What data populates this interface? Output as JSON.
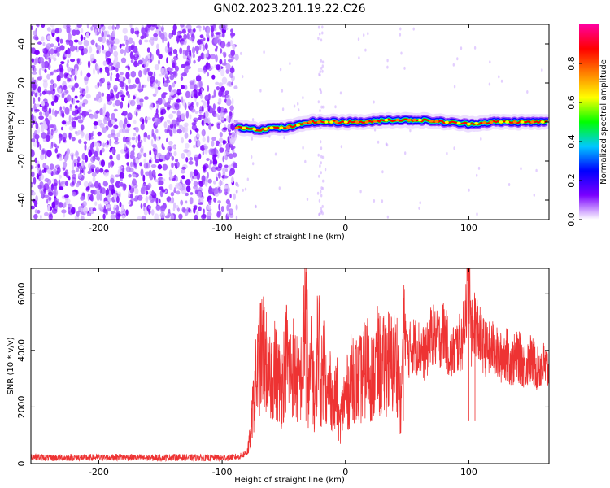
{
  "figure": {
    "title": "GN02.2023.201.19.22.C26"
  },
  "chart_data": [
    {
      "type": "heatmap",
      "title": "",
      "xlabel": "Height of straight line (km)",
      "ylabel": "Frequency (Hz)",
      "xlim": [
        -255,
        165
      ],
      "ylim": [
        -50,
        50
      ],
      "xticks": [
        -200,
        -100,
        0,
        100
      ],
      "yticks": [
        -40,
        -20,
        0,
        20,
        40
      ],
      "noise_region_x": [
        -255,
        -88
      ],
      "signal_frequency_track": {
        "x": [
          -88,
          -80,
          -70,
          -60,
          -50,
          -40,
          -30,
          -20,
          -10,
          0,
          10,
          20,
          30,
          40,
          60,
          80,
          100,
          120,
          140,
          165
        ],
        "y": [
          -3,
          -3,
          -4,
          -3,
          -3,
          -2,
          0,
          0,
          0,
          0,
          0,
          0,
          1,
          1,
          1,
          0,
          -1,
          0,
          0,
          0
        ]
      },
      "colorbar": {
        "label": "Normalized spectral amplitude",
        "range": [
          0.0,
          1.0
        ],
        "ticks": [
          0.0,
          0.2,
          0.4,
          0.6,
          0.8
        ],
        "colormap": [
          "#ffffff",
          "#7a00ff",
          "#0000ff",
          "#00c8ff",
          "#00ff00",
          "#ffff00",
          "#ff8000",
          "#ff0000",
          "#ff00a0"
        ]
      }
    },
    {
      "type": "line",
      "title": "",
      "xlabel": "Height of straight line (km)",
      "ylabel": "SNR (10 * v/v)",
      "xlim": [
        -255,
        165
      ],
      "ylim": [
        0,
        6900
      ],
      "xticks": [
        -200,
        -100,
        0,
        100
      ],
      "yticks": [
        0,
        2000,
        4000,
        6000
      ],
      "line_color": "#ee3333",
      "series": [
        {
          "x": [
            -255,
            -240,
            -220,
            -200,
            -180,
            -160,
            -140,
            -120,
            -100,
            -90,
            -85,
            -80,
            -77,
            -74,
            -70,
            -66,
            -62,
            -58,
            -55,
            -52,
            -48,
            -45,
            -42,
            -38,
            -35,
            -32,
            -30,
            -27,
            -25,
            -22,
            -20,
            -17,
            -15,
            -12,
            -10,
            -7,
            -5,
            -2,
            0,
            3,
            6,
            10,
            14,
            18,
            22,
            26,
            30,
            34,
            38,
            42,
            45,
            47,
            50,
            55,
            60,
            65,
            70,
            75,
            80,
            85,
            90,
            95,
            100,
            102,
            105,
            110,
            115,
            120,
            125,
            130,
            135,
            140,
            145,
            150,
            155,
            160,
            165
          ],
          "y": [
            250,
            200,
            220,
            210,
            230,
            200,
            220,
            210,
            200,
            230,
            260,
            400,
            900,
            2500,
            3600,
            4100,
            2800,
            3400,
            3100,
            2600,
            3900,
            3200,
            3500,
            2700,
            3300,
            6200,
            2400,
            3800,
            1900,
            4900,
            2600,
            3900,
            2100,
            2900,
            1800,
            2600,
            1300,
            2100,
            2400,
            2600,
            3300,
            2800,
            3100,
            3500,
            3000,
            3600,
            3300,
            3700,
            3500,
            3600,
            1800,
            5400,
            3900,
            4200,
            4100,
            3800,
            4600,
            4300,
            4700,
            3800,
            4100,
            4400,
            6800,
            4500,
            5100,
            4300,
            4000,
            4100,
            3700,
            3900,
            3600,
            3800,
            3500,
            3700,
            3400,
            3500,
            3300
          ]
        }
      ]
    }
  ]
}
